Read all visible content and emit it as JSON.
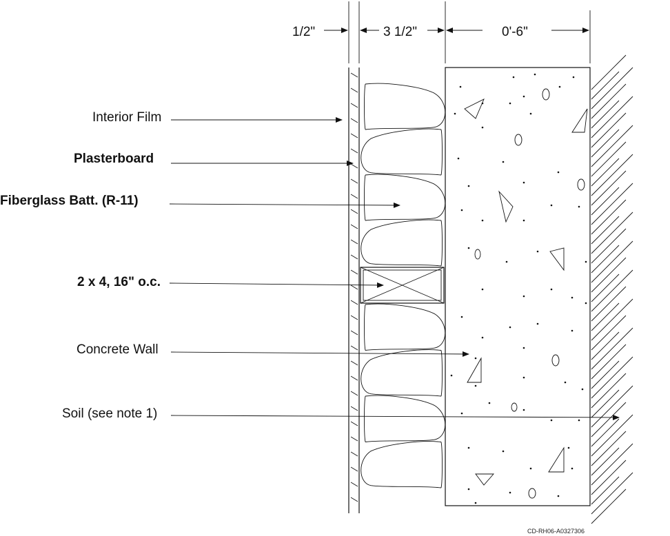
{
  "labels": {
    "interior_film": "Interior Film",
    "plasterboard": "Plasterboard",
    "fiberglass_batt": "Fiberglass Batt. (R-11)",
    "stud": "2 x 4, 16\"  o.c.",
    "concrete_wall": "Concrete Wall",
    "soil": "Soil (see note 1)"
  },
  "dimensions": {
    "plasterboard": "1/2\"",
    "stud_cavity": "3 1/2\"",
    "concrete": "0'-6\""
  },
  "figure_code": "CD-RH06-A0327306"
}
